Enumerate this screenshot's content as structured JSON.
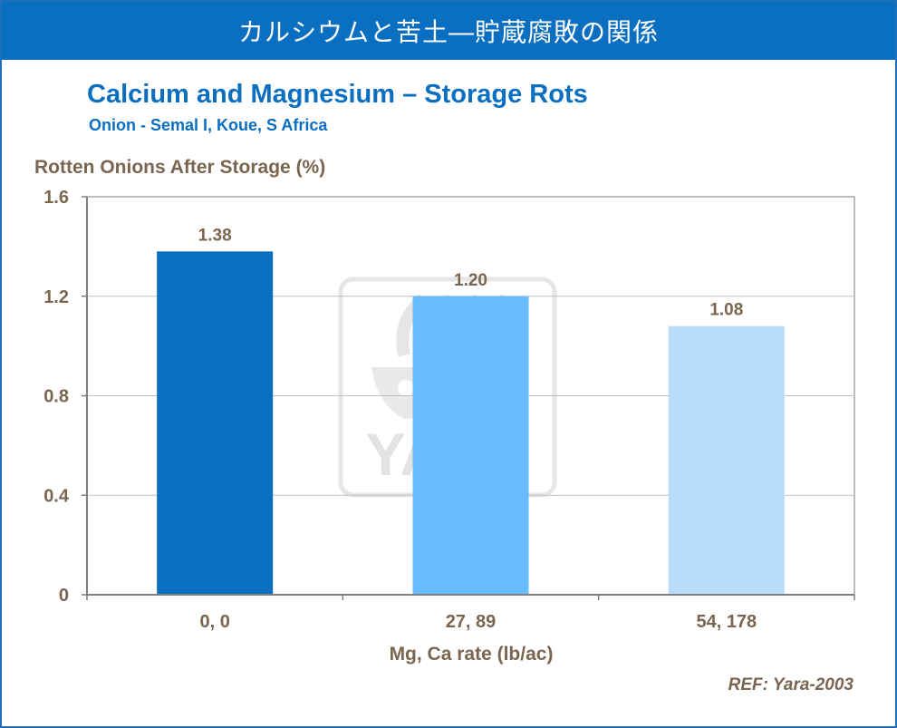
{
  "header": {
    "title": "カルシウムと苦土―貯蔵腐敗の関係"
  },
  "chart_data": {
    "type": "bar",
    "title": "Calcium and Magnesium – Storage Rots",
    "subtitle": "Onion  - Semal I, Koue, S Africa",
    "ylabel": "Rotten Onions After Storage (%)",
    "xlabel": "Mg, Ca rate (lb/ac)",
    "categories": [
      "0, 0",
      "27, 89",
      "54, 178"
    ],
    "values": [
      1.38,
      1.2,
      1.08
    ],
    "value_labels": [
      "1.38",
      "1.20",
      "1.08"
    ],
    "bar_colors": [
      "#0a6ec1",
      "#66bcfd",
      "#b8dcfb"
    ],
    "ylim": [
      0,
      1.6
    ],
    "yticks": [
      0,
      0.4,
      0.8,
      1.2,
      1.6
    ],
    "ytick_labels": [
      "0",
      "0.4",
      "0.8",
      "1.2",
      "1.6"
    ],
    "grid": true,
    "legend": "none"
  },
  "watermark": {
    "text": "YARA"
  },
  "reference": "REF: Yara-2003",
  "colors": {
    "accent": "#0a6ec1",
    "text": "#7a6650",
    "gridline": "#bfbfbf"
  }
}
